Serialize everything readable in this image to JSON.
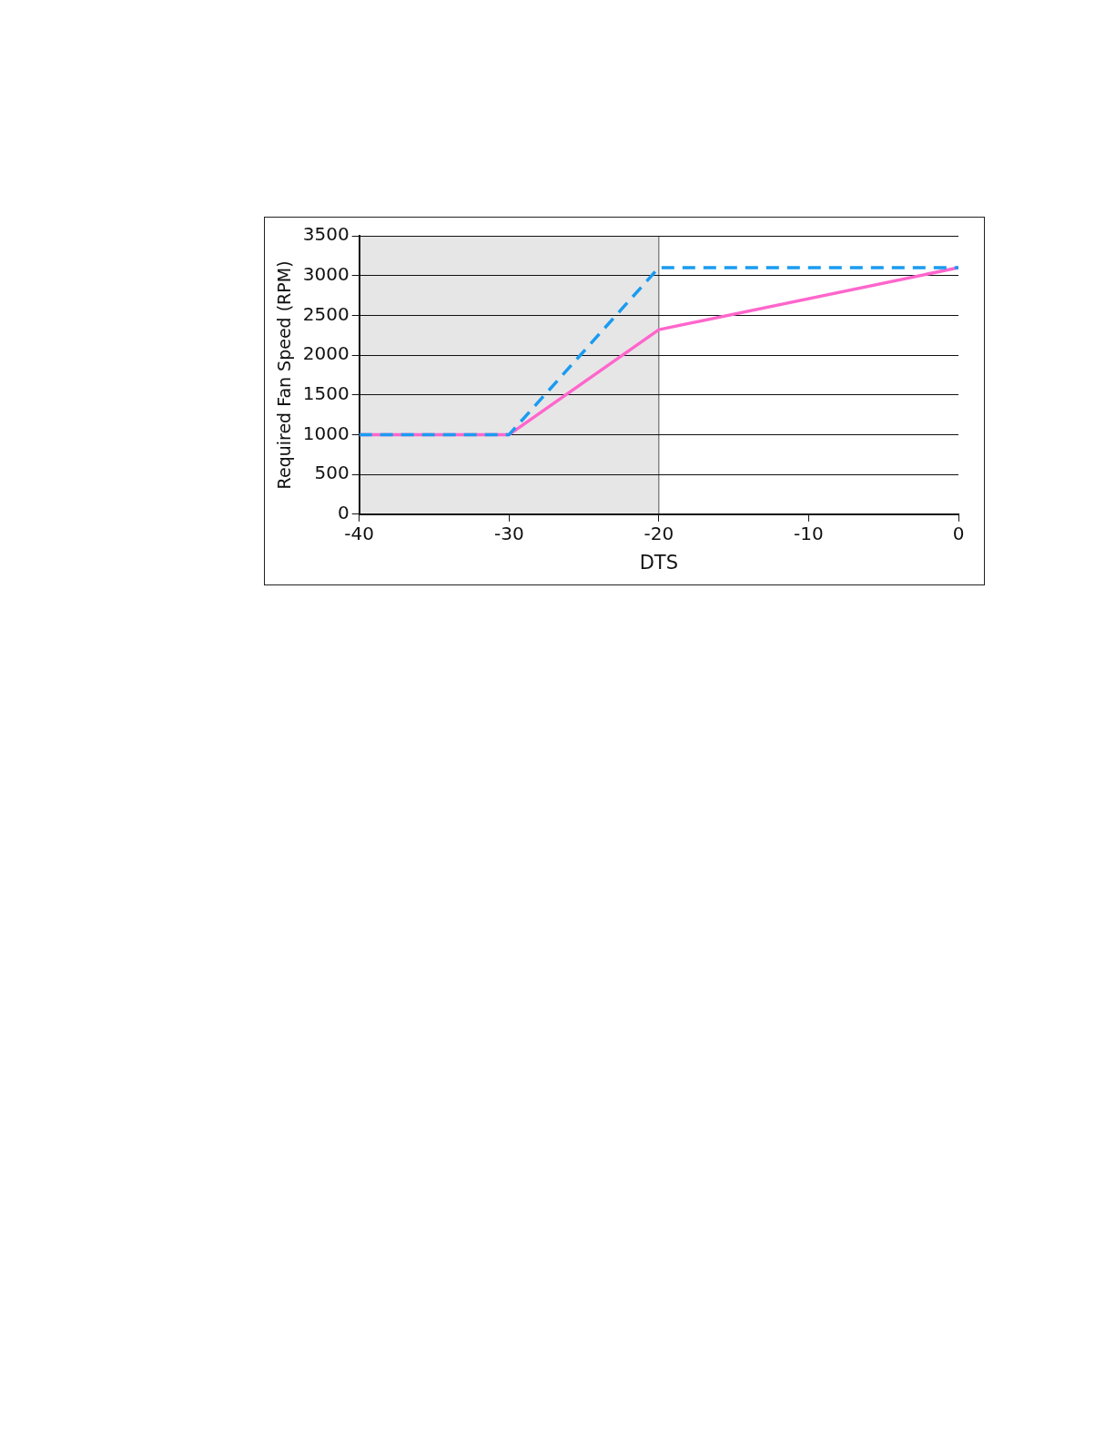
{
  "chart_data": {
    "type": "line",
    "xlabel": "DTS",
    "ylabel": "Required Fan Speed (RPM)",
    "xlim": [
      -40,
      0
    ],
    "xticks": [
      -40,
      -30,
      -20,
      -10,
      0
    ],
    "ylim": [
      0,
      3500
    ],
    "yticks": [
      0,
      500,
      1000,
      1500,
      2000,
      2500,
      3000,
      3500
    ],
    "grid": "y",
    "legend": false,
    "marker": "none",
    "bands": [
      {
        "axis": "x",
        "from": -40,
        "to": -20,
        "color": "#e6e6e6"
      }
    ],
    "ref_lines": [
      {
        "axis": "x",
        "value": -20,
        "color": "#555555"
      }
    ],
    "series": [
      {
        "color": "#1a9bf0",
        "line_style": "dashed",
        "x": [
          -40,
          -30,
          -20,
          0
        ],
        "values": [
          1000,
          1000,
          3100,
          3100
        ]
      },
      {
        "color": "#ff66cc",
        "line_style": "solid",
        "x": [
          -40,
          -30,
          -20,
          0
        ],
        "values": [
          1000,
          1000,
          2320,
          3100
        ]
      }
    ]
  }
}
